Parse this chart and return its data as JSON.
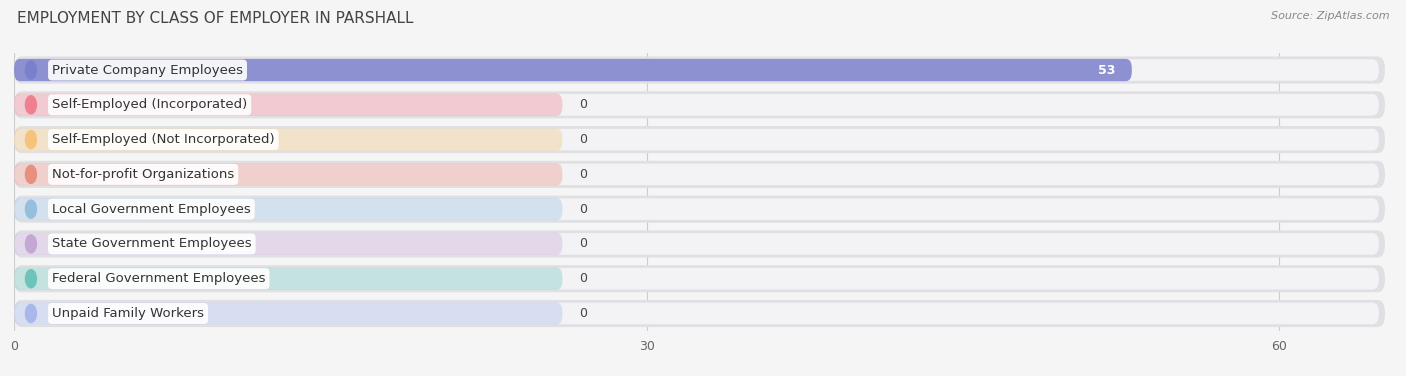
{
  "title": "EMPLOYMENT BY CLASS OF EMPLOYER IN PARSHALL",
  "source": "Source: ZipAtlas.com",
  "categories": [
    "Private Company Employees",
    "Self-Employed (Incorporated)",
    "Self-Employed (Not Incorporated)",
    "Not-for-profit Organizations",
    "Local Government Employees",
    "State Government Employees",
    "Federal Government Employees",
    "Unpaid Family Workers"
  ],
  "values": [
    53,
    0,
    0,
    0,
    0,
    0,
    0,
    0
  ],
  "bar_colors": [
    "#7b80cc",
    "#f08090",
    "#f5c47a",
    "#e89080",
    "#98bedd",
    "#c4a8d4",
    "#6ec4b8",
    "#a8b8e8"
  ],
  "xlim": [
    0,
    65
  ],
  "xticks": [
    0,
    30,
    60
  ],
  "background_color": "#f5f5f5",
  "row_bg_color": "#ebebeb",
  "row_inner_color": "#f5f5f5",
  "title_fontsize": 11,
  "label_fontsize": 9.5,
  "value_fontsize": 9
}
